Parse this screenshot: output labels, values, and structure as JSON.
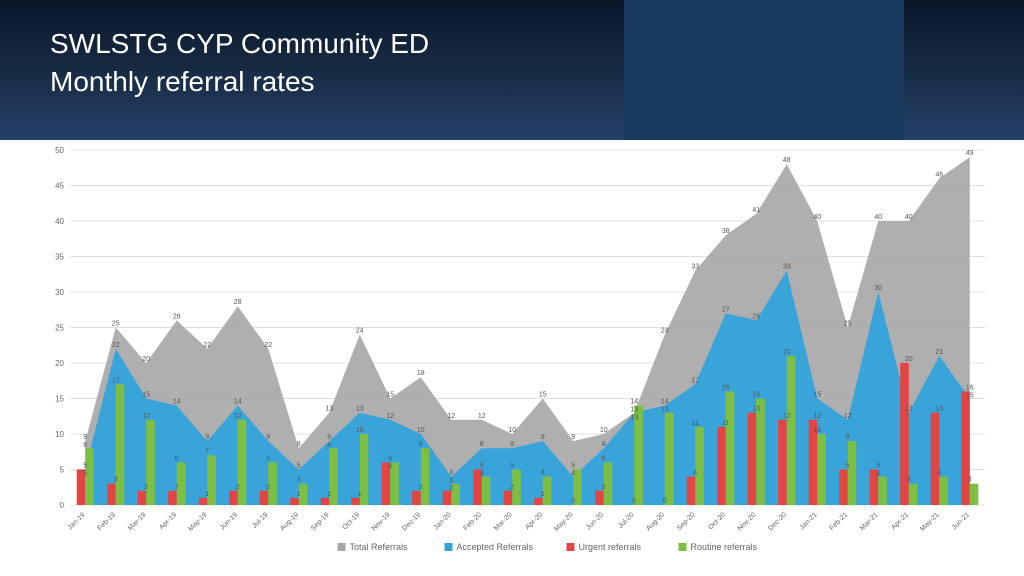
{
  "header": {
    "title_line1": "SWLSTG CYP Community ED",
    "title_line2": "Monthly referral rates"
  },
  "chart": {
    "type": "bar+area",
    "background": "#ffffff",
    "grid_color": "#e0e0e0",
    "ylim": [
      0,
      50
    ],
    "ytick_step": 5,
    "categories": [
      "Jan-19",
      "Feb-19",
      "Mar-19",
      "Apr-19",
      "May-19",
      "Jun-19",
      "Jul-19",
      "Aug-19",
      "Sep-19",
      "Oct-19",
      "Nov-19",
      "Dec-19",
      "Jan-20",
      "Feb-20",
      "Mar-20",
      "Apr-20",
      "May-20",
      "Jun-20",
      "Jul-20",
      "Aug-20",
      "Sep-20",
      "Oct-20",
      "Nov-20",
      "Dec-20",
      "Jan-21",
      "Feb-21",
      "Mar-21",
      "Apr-21",
      "May-21",
      "Jun-21"
    ],
    "series": {
      "total": {
        "label": "Total Referrals",
        "color": "#a6a6a6",
        "type": "area",
        "values": [
          9,
          25,
          20,
          26,
          22,
          28,
          22,
          8,
          13,
          24,
          15,
          18,
          12,
          12,
          10,
          15,
          9,
          10,
          13,
          24,
          33,
          38,
          41,
          48,
          40,
          25,
          40,
          40,
          46,
          49
        ],
        "labels": [
          "9",
          "25",
          "20",
          "26",
          "22",
          "28",
          "22",
          "8",
          "13",
          "24",
          "15",
          "18",
          "12",
          "12",
          "10",
          "15",
          "9",
          "10",
          "13",
          "24",
          "33",
          "38",
          "41",
          "48",
          "40",
          "25",
          "40",
          "40",
          "46",
          "49"
        ]
      },
      "accepted": {
        "label": "Accepted Referrals",
        "color": "#33a3dc",
        "type": "area",
        "values": [
          5,
          22,
          15,
          14,
          9,
          14,
          9,
          5,
          9,
          13,
          12,
          10,
          4,
          8,
          8,
          9,
          4,
          8,
          13,
          14,
          17,
          27,
          26,
          33,
          15,
          12,
          30,
          13,
          21,
          15
        ],
        "labels": [
          "5",
          "22",
          "15",
          "14",
          "9",
          "14",
          "9",
          "5",
          "9",
          "13",
          "12",
          "10",
          "4",
          "8",
          "8",
          "9",
          "4",
          "8",
          "13",
          "14",
          "17",
          "27",
          "26",
          "33",
          "15",
          "12",
          "30",
          "13",
          "21",
          "15"
        ]
      },
      "urgent": {
        "label": "Urgent referrals",
        "color": "#e34444",
        "type": "bar",
        "values": [
          5,
          3,
          2,
          2,
          1,
          2,
          2,
          1,
          1,
          1,
          6,
          2,
          2,
          5,
          2,
          1,
          0,
          2,
          0,
          0,
          4,
          11,
          13,
          12,
          12,
          5,
          5,
          20,
          13,
          16
        ],
        "labels": [
          "5",
          "3",
          "2",
          "2",
          "1",
          "2",
          "2",
          "1",
          "1",
          "1",
          "6",
          "2",
          "2",
          "5",
          "2",
          "1",
          "0",
          "2",
          "0",
          "0",
          "4",
          "11",
          "13",
          "12",
          "12",
          "5",
          "5",
          "20",
          "13",
          "16"
        ]
      },
      "routine": {
        "label": "Routine referrals",
        "color": "#7cbf42",
        "type": "bar",
        "values": [
          8,
          17,
          12,
          6,
          7,
          12,
          6,
          3,
          8,
          10,
          6,
          8,
          3,
          4,
          5,
          4,
          5,
          6,
          14,
          13,
          11,
          16,
          15,
          21,
          10,
          9,
          4,
          3,
          4,
          3
        ],
        "labels": [
          "8",
          "17",
          "12",
          "6",
          "7",
          "12",
          "6",
          "3",
          "8",
          "10",
          "6",
          "8",
          "3",
          "4",
          "5",
          "4",
          "5",
          "6",
          "14",
          "13",
          "11",
          "16",
          "15",
          "21",
          "10",
          "9",
          "4",
          "3",
          "4",
          "3"
        ]
      }
    },
    "legend_order": [
      "total",
      "accepted",
      "urgent",
      "routine"
    ],
    "bar_width": 0.28,
    "label_fontsize": 7
  }
}
